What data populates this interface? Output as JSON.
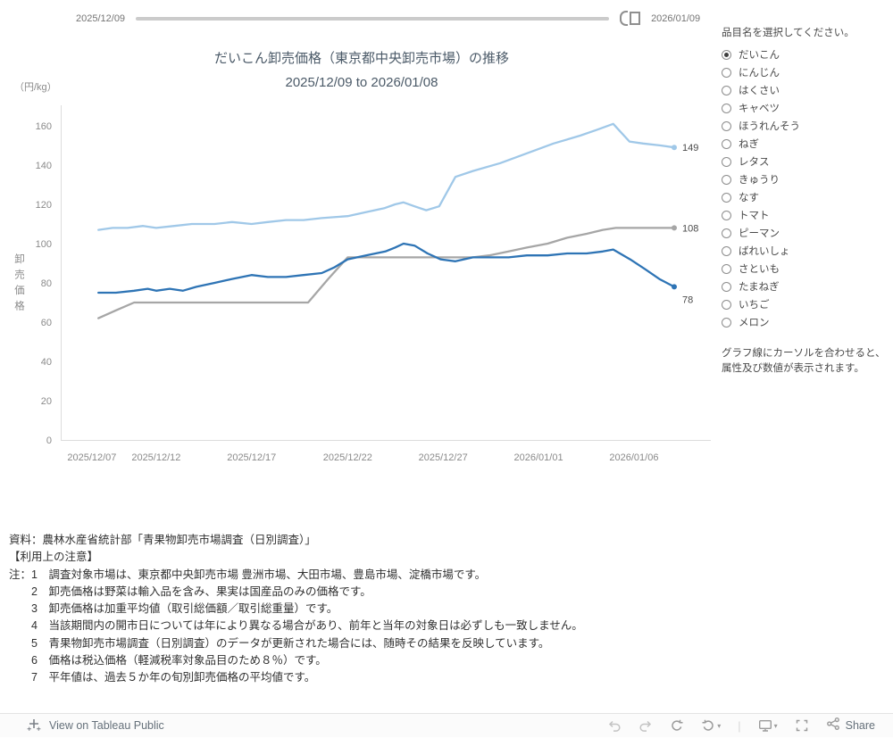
{
  "slider": {
    "start_label": "2025/12/09",
    "end_label": "2026/01/09"
  },
  "panel": {
    "title": "品目名を選択してください。",
    "items": [
      {
        "label": "だいこん",
        "selected": true
      },
      {
        "label": "にんじん",
        "selected": false
      },
      {
        "label": "はくさい",
        "selected": false
      },
      {
        "label": "キャベツ",
        "selected": false
      },
      {
        "label": "ほうれんそう",
        "selected": false
      },
      {
        "label": "ねぎ",
        "selected": false
      },
      {
        "label": "レタス",
        "selected": false
      },
      {
        "label": "きゅうり",
        "selected": false
      },
      {
        "label": "なす",
        "selected": false
      },
      {
        "label": "トマト",
        "selected": false
      },
      {
        "label": "ピーマン",
        "selected": false
      },
      {
        "label": "ばれいしょ",
        "selected": false
      },
      {
        "label": "さといも",
        "selected": false
      },
      {
        "label": "たまねぎ",
        "selected": false
      },
      {
        "label": "いちご",
        "selected": false
      },
      {
        "label": "メロン",
        "selected": false
      }
    ],
    "hint_line1": "グラフ線にカーソルを合わせると、",
    "hint_line2": "属性及び数値が表示されます。"
  },
  "chart_data": {
    "type": "line",
    "title": "だいこん卸売価格（東京都中央卸売市場）の推移",
    "subtitle": "2025/12/09 to 2026/01/08",
    "unit": "（円/kg）",
    "ylabel": "卸売価格",
    "ylim": [
      0,
      160
    ],
    "yticks": [
      0,
      20,
      40,
      60,
      80,
      100,
      120,
      140,
      160
    ],
    "xticks": [
      {
        "label": "2025/12/07",
        "pos": 0.048
      },
      {
        "label": "2025/12/12",
        "pos": 0.147
      },
      {
        "label": "2025/12/17",
        "pos": 0.294
      },
      {
        "label": "2025/12/22",
        "pos": 0.442
      },
      {
        "label": "2025/12/27",
        "pos": 0.589
      },
      {
        "label": "2026/01/01",
        "pos": 0.736
      },
      {
        "label": "2026/01/06",
        "pos": 0.883
      }
    ],
    "series": [
      {
        "name": "gray-line",
        "color": "#a6a6a6",
        "end_label": "108",
        "label_dy": 0,
        "points": [
          [
            0.058,
            62
          ],
          [
            0.085,
            66
          ],
          [
            0.113,
            70
          ],
          [
            0.147,
            70
          ],
          [
            0.19,
            70
          ],
          [
            0.23,
            70
          ],
          [
            0.27,
            70
          ],
          [
            0.294,
            70
          ],
          [
            0.33,
            70
          ],
          [
            0.36,
            70
          ],
          [
            0.381,
            70
          ],
          [
            0.412,
            82
          ],
          [
            0.442,
            93
          ],
          [
            0.48,
            93
          ],
          [
            0.52,
            93
          ],
          [
            0.56,
            93
          ],
          [
            0.6,
            93
          ],
          [
            0.635,
            93
          ],
          [
            0.66,
            94
          ],
          [
            0.69,
            96
          ],
          [
            0.718,
            98
          ],
          [
            0.75,
            100
          ],
          [
            0.78,
            103
          ],
          [
            0.81,
            105
          ],
          [
            0.835,
            107
          ],
          [
            0.855,
            108
          ],
          [
            0.88,
            108
          ],
          [
            0.91,
            108
          ],
          [
            0.945,
            108
          ]
        ]
      },
      {
        "name": "light-blue-line",
        "color": "#a0c8e8",
        "end_label": "149",
        "label_dy": 0,
        "points": [
          [
            0.058,
            107
          ],
          [
            0.08,
            108
          ],
          [
            0.103,
            108
          ],
          [
            0.127,
            109
          ],
          [
            0.147,
            108
          ],
          [
            0.175,
            109
          ],
          [
            0.202,
            110
          ],
          [
            0.237,
            110
          ],
          [
            0.264,
            111
          ],
          [
            0.294,
            110
          ],
          [
            0.319,
            111
          ],
          [
            0.347,
            112
          ],
          [
            0.374,
            112
          ],
          [
            0.402,
            113
          ],
          [
            0.442,
            114
          ],
          [
            0.47,
            116
          ],
          [
            0.498,
            118
          ],
          [
            0.515,
            120
          ],
          [
            0.528,
            121
          ],
          [
            0.545,
            119
          ],
          [
            0.563,
            117
          ],
          [
            0.583,
            119
          ],
          [
            0.608,
            134
          ],
          [
            0.635,
            137
          ],
          [
            0.677,
            141
          ],
          [
            0.718,
            146
          ],
          [
            0.759,
            151
          ],
          [
            0.8,
            155
          ],
          [
            0.826,
            158
          ],
          [
            0.851,
            161
          ],
          [
            0.876,
            152
          ],
          [
            0.897,
            151
          ],
          [
            0.924,
            150
          ],
          [
            0.945,
            149
          ]
        ]
      },
      {
        "name": "dark-blue-line",
        "color": "#2e74b5",
        "end_label": "78",
        "label_dy": 14,
        "points": [
          [
            0.058,
            75
          ],
          [
            0.085,
            75
          ],
          [
            0.113,
            76
          ],
          [
            0.134,
            77
          ],
          [
            0.147,
            76
          ],
          [
            0.168,
            77
          ],
          [
            0.188,
            76
          ],
          [
            0.209,
            78
          ],
          [
            0.237,
            80
          ],
          [
            0.264,
            82
          ],
          [
            0.294,
            84
          ],
          [
            0.319,
            83
          ],
          [
            0.347,
            83
          ],
          [
            0.374,
            84
          ],
          [
            0.402,
            85
          ],
          [
            0.422,
            88
          ],
          [
            0.442,
            92
          ],
          [
            0.47,
            94
          ],
          [
            0.5,
            96
          ],
          [
            0.515,
            98
          ],
          [
            0.528,
            100
          ],
          [
            0.545,
            99
          ],
          [
            0.565,
            95
          ],
          [
            0.585,
            92
          ],
          [
            0.608,
            91
          ],
          [
            0.635,
            93
          ],
          [
            0.66,
            93
          ],
          [
            0.69,
            93
          ],
          [
            0.718,
            94
          ],
          [
            0.75,
            94
          ],
          [
            0.78,
            95
          ],
          [
            0.81,
            95
          ],
          [
            0.835,
            96
          ],
          [
            0.851,
            97
          ],
          [
            0.877,
            92
          ],
          [
            0.9,
            87
          ],
          [
            0.922,
            82
          ],
          [
            0.945,
            78
          ]
        ]
      }
    ]
  },
  "notes": {
    "lines": [
      "資料：農林水産省統計部「青果物卸売市場調査（日別調査）」",
      "【利用上の注意】",
      "注：1　調査対象市場は、東京都中央卸売市場 豊洲市場、大田市場、豊島市場、淀橋市場です。",
      "　　2　卸売価格は野菜は輸入品を含み、果実は国産品のみの価格です。",
      "　　3　卸売価格は加重平均値（取引総価額／取引総重量）です。",
      "　　4　当該期間内の開市日については年により異なる場合があり、前年と当年の対象日は必ずしも一致しません。",
      "　　5　青果物卸売市場調査（日別調査）のデータが更新された場合には、随時その結果を反映しています。",
      "　　6　価格は税込価格（軽減税率対象品目のため８％）です。",
      "　　7　平年値は、過去５か年の旬別卸売価格の平均値です。"
    ]
  },
  "footer": {
    "view_on": "View on Tableau Public",
    "share_label": "Share",
    "divider": "|",
    "caret": "▾"
  }
}
